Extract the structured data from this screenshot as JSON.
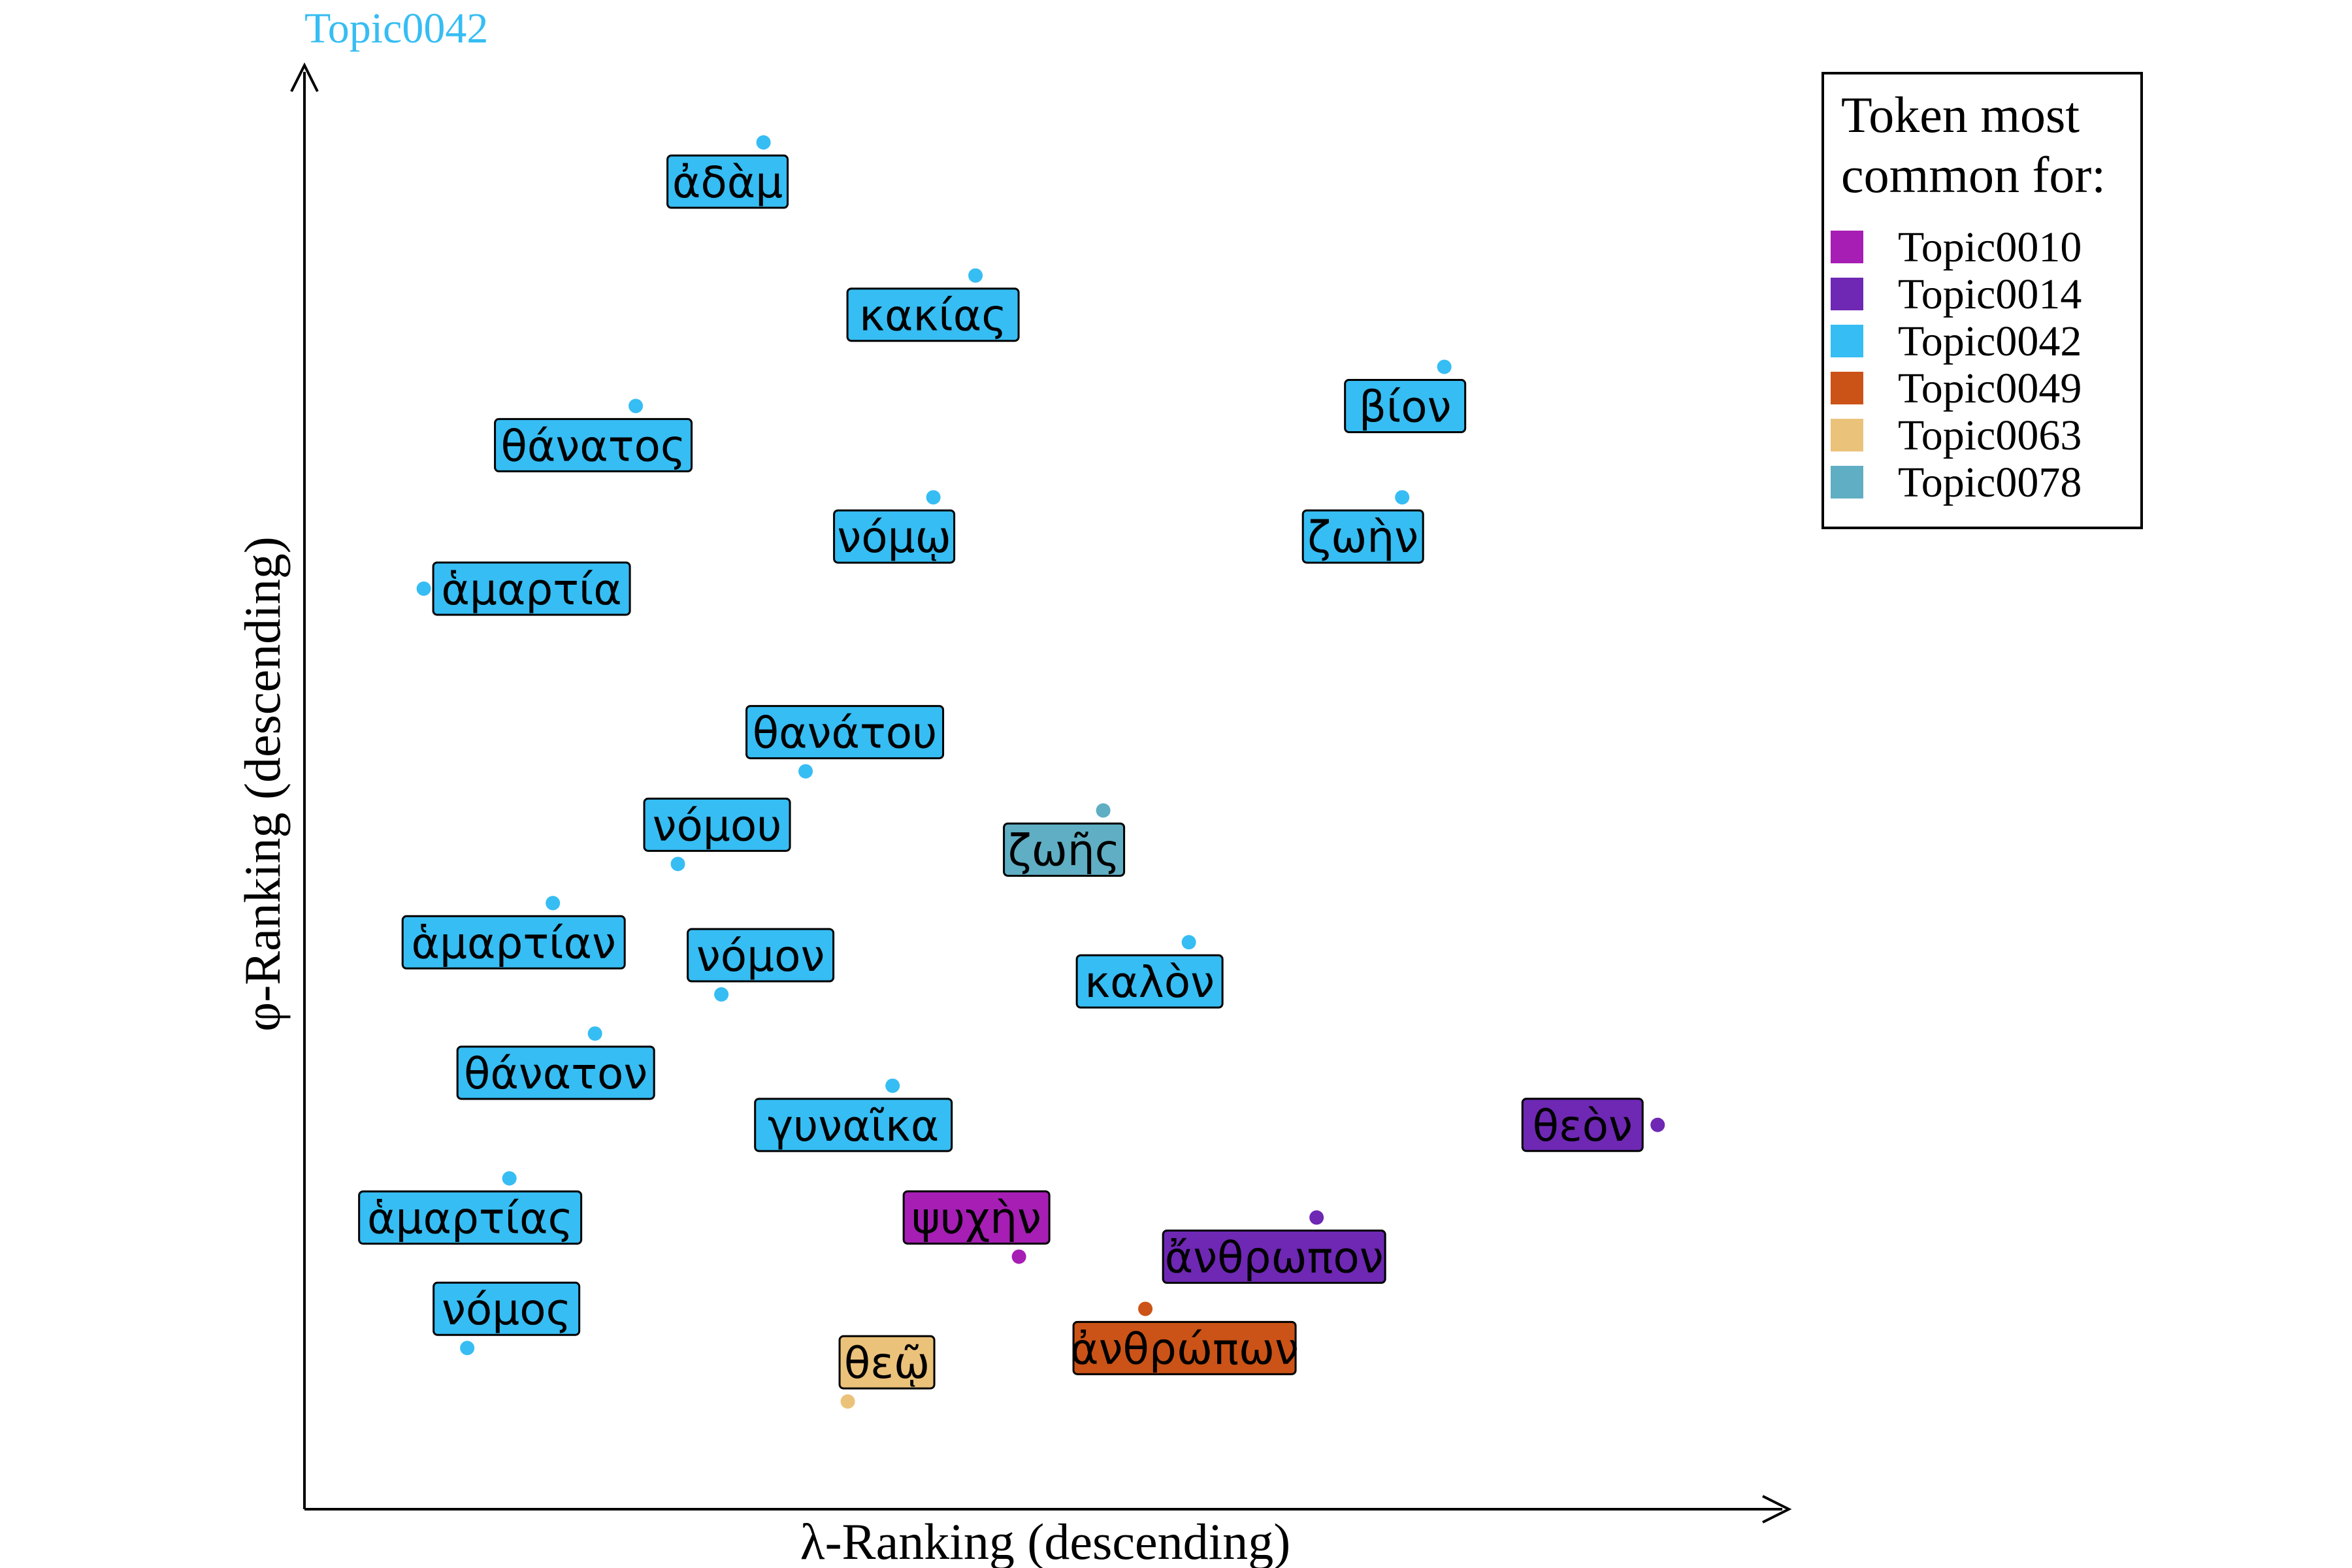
{
  "chart_data": {
    "type": "scatter",
    "title": "Topic0042",
    "xlabel": "λ-Ranking (descending)",
    "ylabel": "φ-Ranking (descending)",
    "xlim": [
      0,
      100
    ],
    "ylim": [
      0,
      100
    ],
    "grid": false,
    "legend_position": "top-right",
    "legend": {
      "title_lines": [
        "Token most",
        "common for:"
      ],
      "entries": [
        {
          "name": "Topic0010",
          "color": "#A61EB4"
        },
        {
          "name": "Topic0014",
          "color": "#6E28B4"
        },
        {
          "name": "Topic0042",
          "color": "#36BDF3"
        },
        {
          "name": "Topic0049",
          "color": "#CB5317"
        },
        {
          "name": "Topic0063",
          "color": "#EBC27A"
        },
        {
          "name": "Topic0078",
          "color": "#5FAEC3"
        }
      ]
    },
    "points": [
      {
        "label": "ἀδὰμ",
        "x": 29.5,
        "y": 100.5,
        "topic": "Topic0042"
      },
      {
        "label": "κακίας",
        "x": 45.1,
        "y": 90.3,
        "topic": "Topic0042"
      },
      {
        "label": "βίον",
        "x": 79.6,
        "y": 83.3,
        "topic": "Topic0042"
      },
      {
        "label": "θάνατος",
        "x": 20.1,
        "y": 80.3,
        "topic": "Topic0042"
      },
      {
        "label": "νόμῳ",
        "x": 42.0,
        "y": 73.3,
        "topic": "Topic0042"
      },
      {
        "label": "ζωὴν",
        "x": 76.5,
        "y": 73.3,
        "topic": "Topic0042"
      },
      {
        "label": "ἁμαρτία",
        "x": 4.5,
        "y": 66.3,
        "topic": "Topic0042"
      },
      {
        "label": "θανάτου",
        "x": 32.6,
        "y": 52.3,
        "topic": "Topic0042"
      },
      {
        "label": "νόμου",
        "x": 23.2,
        "y": 45.2,
        "topic": "Topic0042"
      },
      {
        "label": "ζωῆς",
        "x": 54.5,
        "y": 49.3,
        "topic": "Topic0078"
      },
      {
        "label": "ἁμαρτίαν",
        "x": 14.0,
        "y": 42.2,
        "topic": "Topic0042"
      },
      {
        "label": "νόμον",
        "x": 26.4,
        "y": 35.2,
        "topic": "Topic0042"
      },
      {
        "label": "καλὸν",
        "x": 60.8,
        "y": 39.2,
        "topic": "Topic0042"
      },
      {
        "label": "θάνατον",
        "x": 17.1,
        "y": 32.2,
        "topic": "Topic0042"
      },
      {
        "label": "γυναῖκα",
        "x": 39.0,
        "y": 28.2,
        "topic": "Topic0042"
      },
      {
        "label": "θεὸν",
        "x": 95.3,
        "y": 25.2,
        "topic": "Topic0014"
      },
      {
        "label": "ἁμαρτίας",
        "x": 10.8,
        "y": 21.1,
        "topic": "Topic0042"
      },
      {
        "label": "ψυχὴν",
        "x": 48.3,
        "y": 15.1,
        "topic": "Topic0010"
      },
      {
        "label": "ἄνθρωπον",
        "x": 70.2,
        "y": 18.1,
        "topic": "Topic0014"
      },
      {
        "label": "ἀνθρώπων",
        "x": 57.6,
        "y": 11.1,
        "topic": "Topic0049"
      },
      {
        "label": "νόμος",
        "x": 7.7,
        "y": 8.1,
        "topic": "Topic0042"
      },
      {
        "label": "θεῷ",
        "x": 35.7,
        "y": 4.0,
        "topic": "Topic0063"
      }
    ]
  }
}
